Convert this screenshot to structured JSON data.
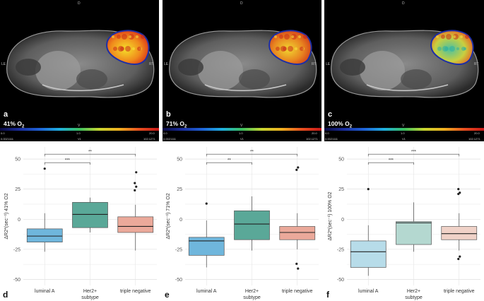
{
  "mri_panels": [
    {
      "letter": "a",
      "o2_label": "41% O",
      "o2_sub": "2",
      "orient_top": "D",
      "orient_left": "LE",
      "orient_right": "RT",
      "orient_bottom": "V",
      "cbar_min": "0.0",
      "cbar_mid": "1.0",
      "cbar_max": "20.0",
      "footer_left": "0.0021111",
      "footer_mid": "V1",
      "footer_right": "102.1271"
    },
    {
      "letter": "b",
      "o2_label": "71% O",
      "o2_sub": "2",
      "orient_top": "D",
      "orient_left": "LE",
      "orient_right": "RT",
      "orient_bottom": "V",
      "cbar_min": "0.0",
      "cbar_mid": "1.0",
      "cbar_max": "20.0",
      "footer_left": "0.0021111",
      "footer_mid": "V1",
      "footer_right": "102.1271"
    },
    {
      "letter": "c",
      "o2_label": "100% O",
      "o2_sub": "2",
      "orient_top": "D",
      "orient_left": "LE",
      "orient_right": "RT",
      "orient_bottom": "V",
      "cbar_min": "0.0",
      "cbar_mid": "1.0",
      "cbar_max": "20.0",
      "footer_left": "0.0021111",
      "footer_mid": "V1",
      "footer_right": "102.1271"
    }
  ],
  "chart_data": [
    {
      "type": "box",
      "letter": "d",
      "ylabel": "ΔR2*(sec⁻¹) 41% O2",
      "xlabel": "subtype",
      "categories": [
        "luminal A",
        "Her2+",
        "triple negative"
      ],
      "colors": [
        "#6fb6dc",
        "#5aa898",
        "#eba99a"
      ],
      "ylim": [
        -55,
        60
      ],
      "yticks": [
        -50,
        -25,
        0,
        25,
        50
      ],
      "boxes": [
        {
          "q1": -19,
          "median": -14,
          "q3": -8,
          "lo": -27,
          "hi": 5,
          "outliers": [
            42
          ]
        },
        {
          "q1": -7,
          "median": 4,
          "q3": 14,
          "lo": -11,
          "hi": 18,
          "outliers": []
        },
        {
          "q1": -11,
          "median": -6,
          "q3": 2,
          "lo": -26,
          "hi": 12,
          "outliers": [
            24,
            27,
            30,
            39
          ]
        }
      ],
      "sig": [
        {
          "from": 0,
          "to": 1,
          "label": "***"
        },
        {
          "from": 0,
          "to": 2,
          "label": "**"
        }
      ]
    },
    {
      "type": "box",
      "letter": "e",
      "ylabel": "ΔR2*(sec⁻¹) 71% O2",
      "xlabel": "subtype",
      "categories": [
        "luminal A",
        "Her2+",
        "triple negative"
      ],
      "colors": [
        "#6fb6dc",
        "#5aa898",
        "#eba99a"
      ],
      "ylim": [
        -55,
        60
      ],
      "yticks": [
        -50,
        -25,
        0,
        25,
        50
      ],
      "boxes": [
        {
          "q1": -30,
          "median": -18,
          "q3": -15,
          "lo": -40,
          "hi": -1,
          "outliers": [
            13
          ]
        },
        {
          "q1": -17,
          "median": -4,
          "q3": 7,
          "lo": -26,
          "hi": 19,
          "outliers": []
        },
        {
          "q1": -17,
          "median": -11,
          "q3": -6,
          "lo": -25,
          "hi": 5,
          "outliers": [
            41,
            43,
            -37,
            -41
          ]
        }
      ],
      "sig": [
        {
          "from": 0,
          "to": 1,
          "label": "**"
        },
        {
          "from": 0,
          "to": 2,
          "label": "**"
        }
      ]
    },
    {
      "type": "box",
      "letter": "f",
      "ylabel": "ΔR2*(sec⁻¹) 100% O2",
      "xlabel": "subtype",
      "categories": [
        "luminal A",
        "Her2+",
        "triple negative"
      ],
      "colors": [
        "#b7dce9",
        "#b4d8d0",
        "#f0d2c8"
      ],
      "ylim": [
        -55,
        60
      ],
      "yticks": [
        -50,
        -25,
        0,
        25,
        50
      ],
      "boxes": [
        {
          "q1": -40,
          "median": -27,
          "q3": -18,
          "lo": -47,
          "hi": -5,
          "outliers": [
            25
          ]
        },
        {
          "q1": -21,
          "median": -3,
          "q3": -2,
          "lo": -27,
          "hi": 14,
          "outliers": []
        },
        {
          "q1": -17,
          "median": -12,
          "q3": -6,
          "lo": -26,
          "hi": 5,
          "outliers": [
            21,
            22,
            25,
            -31,
            -33
          ]
        }
      ],
      "sig": [
        {
          "from": 0,
          "to": 1,
          "label": "***"
        },
        {
          "from": 0,
          "to": 2,
          "label": "***"
        }
      ]
    }
  ]
}
